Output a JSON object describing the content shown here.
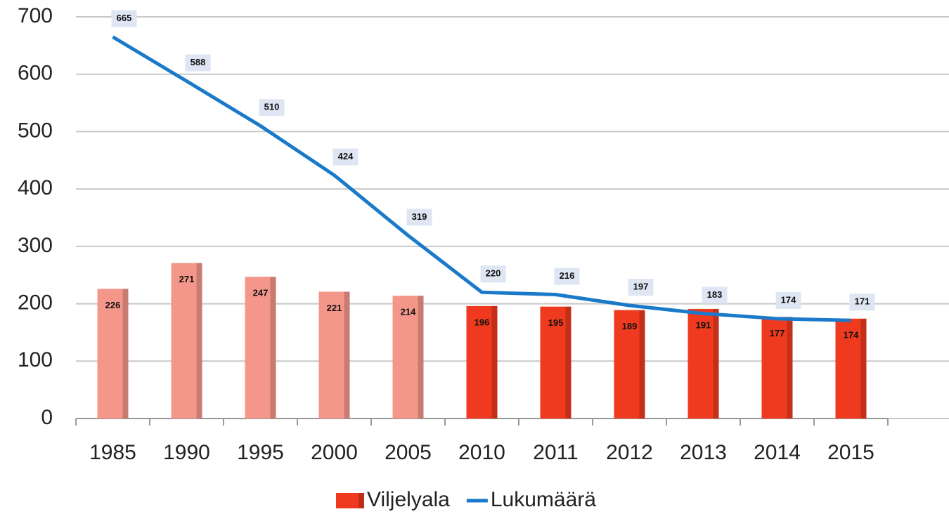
{
  "chart_data": {
    "type": "bar_line",
    "categories": [
      "1985",
      "1990",
      "1995",
      "2000",
      "2005",
      "2010",
      "2011",
      "2012",
      "2013",
      "2014",
      "2015"
    ],
    "series": [
      {
        "name": "Viljelyala",
        "type": "bar",
        "color": "#f03a1f",
        "colors": [
          "#f4978a",
          "#f4978a",
          "#f4978a",
          "#f4978a",
          "#f4978a",
          "#f03a1f",
          "#f03a1f",
          "#f03a1f",
          "#f03a1f",
          "#f03a1f",
          "#f03a1f"
        ],
        "values": [
          226,
          271,
          247,
          221,
          214,
          196,
          195,
          189,
          191,
          177,
          174
        ]
      },
      {
        "name": "Lukumäärä",
        "type": "line",
        "color": "#1a7ac9",
        "values": [
          665,
          588,
          510,
          424,
          319,
          220,
          216,
          197,
          183,
          174,
          171
        ]
      }
    ],
    "ylim": [
      0,
      700
    ],
    "yticks": [
      0,
      100,
      200,
      300,
      400,
      500,
      600,
      700
    ],
    "grid": true
  }
}
